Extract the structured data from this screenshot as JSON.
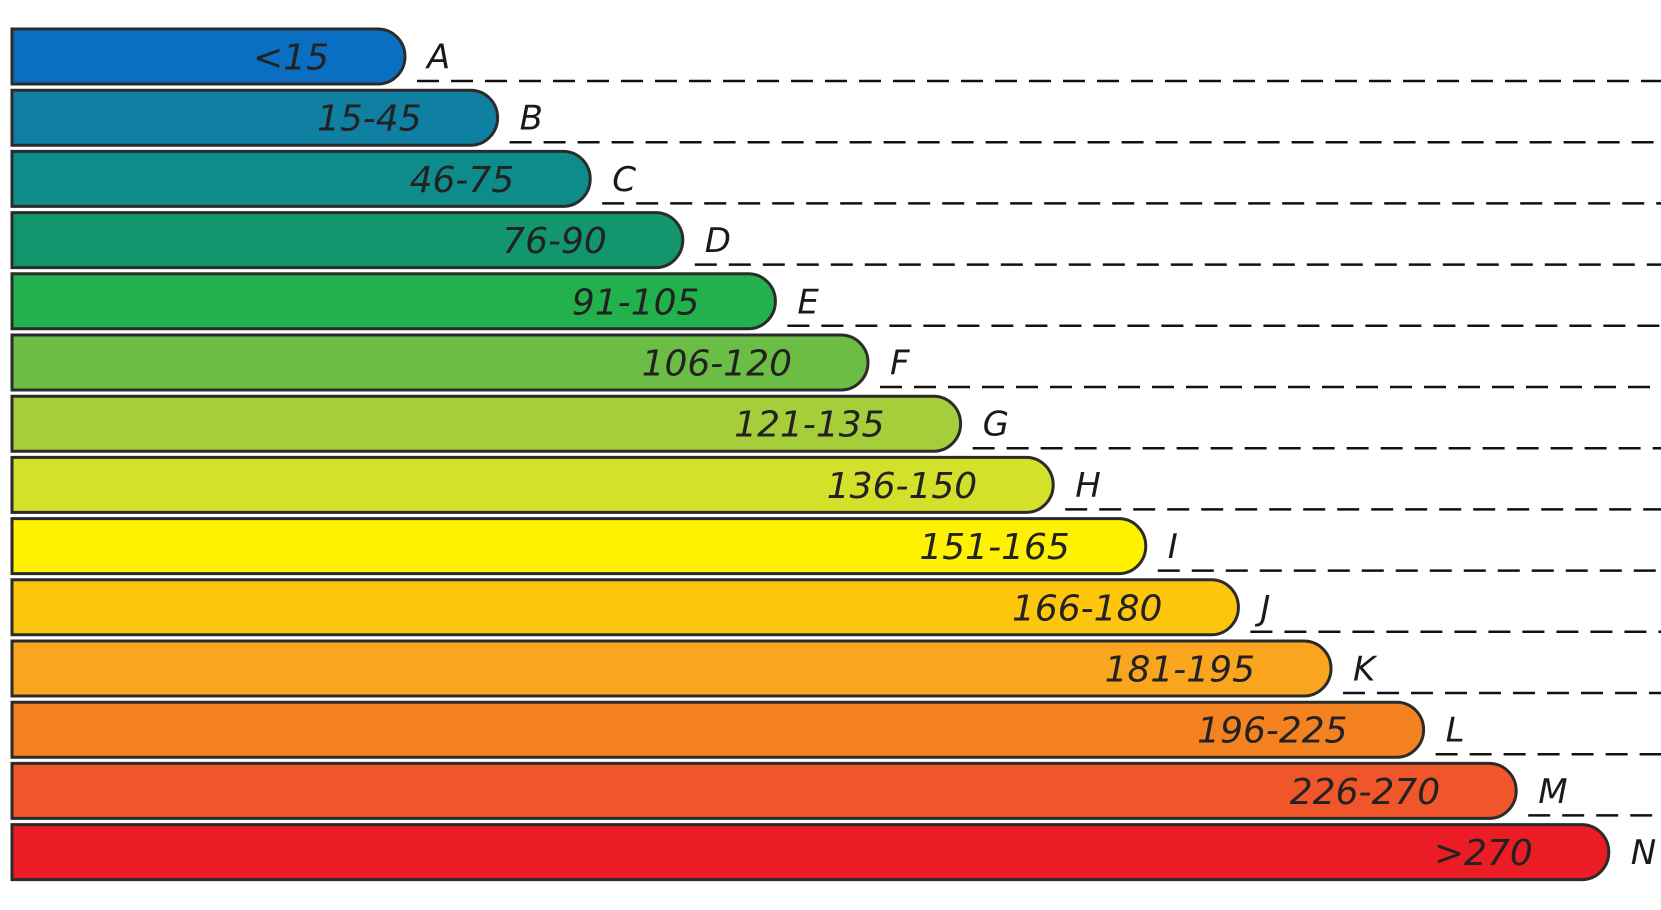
{
  "classes": [
    {
      "letter": "A",
      "range": "<15",
      "color": "#0a6fc2"
    },
    {
      "letter": "B",
      "range": "15-45",
      "color": "#0f7fa2"
    },
    {
      "letter": "C",
      "range": "46-75",
      "color": "#0e8c8c"
    },
    {
      "letter": "D",
      "range": "76-90",
      "color": "#11966e"
    },
    {
      "letter": "E",
      "range": "91-105",
      "color": "#22b14c"
    },
    {
      "letter": "F",
      "range": "106-120",
      "color": "#6cbd45"
    },
    {
      "letter": "G",
      "range": "121-135",
      "color": "#a6cd3a"
    },
    {
      "letter": "H",
      "range": "136-150",
      "color": "#d4e12b"
    },
    {
      "letter": "I",
      "range": "151-165",
      "color": "#fff200"
    },
    {
      "letter": "J",
      "range": "166-180",
      "color": "#fdc50c"
    },
    {
      "letter": "K",
      "range": "181-195",
      "color": "#f9a51e"
    },
    {
      "letter": "L",
      "range": "196-225",
      "color": "#f58220"
    },
    {
      "letter": "M",
      "range": "226-270",
      "color": "#f0562a"
    },
    {
      "letter": "N",
      "range": ">270",
      "color": "#ec1c24"
    }
  ]
}
